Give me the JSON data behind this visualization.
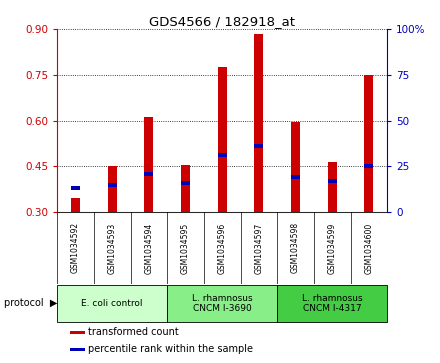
{
  "title": "GDS4566 / 182918_at",
  "samples": [
    "GSM1034592",
    "GSM1034593",
    "GSM1034594",
    "GSM1034595",
    "GSM1034596",
    "GSM1034597",
    "GSM1034598",
    "GSM1034599",
    "GSM1034600"
  ],
  "transformed_counts": [
    0.345,
    0.45,
    0.61,
    0.455,
    0.775,
    0.885,
    0.595,
    0.465,
    0.75
  ],
  "percentile_ranks": [
    13,
    15,
    21,
    16,
    31,
    36,
    19,
    17,
    25
  ],
  "ylim_left": [
    0.3,
    0.9
  ],
  "ylim_right": [
    0,
    100
  ],
  "yticks_left": [
    0.3,
    0.45,
    0.6,
    0.75,
    0.9
  ],
  "yticks_right": [
    0,
    25,
    50,
    75,
    100
  ],
  "bar_color": "#cc0000",
  "percentile_color": "#0000bb",
  "bar_width": 0.25,
  "groups": [
    {
      "label": "E. coli control",
      "indices": [
        0,
        1,
        2
      ],
      "color": "#ccffcc"
    },
    {
      "label": "L. rhamnosus\nCNCM I-3690",
      "indices": [
        3,
        4,
        5
      ],
      "color": "#88ee88"
    },
    {
      "label": "L. rhamnosus\nCNCM I-4317",
      "indices": [
        6,
        7,
        8
      ],
      "color": "#44cc44"
    }
  ],
  "protocol_label": "protocol",
  "legend_items": [
    {
      "label": "transformed count",
      "color": "#cc0000"
    },
    {
      "label": "percentile rank within the sample",
      "color": "#0000bb"
    }
  ],
  "left_tick_color": "#cc0000",
  "right_tick_color": "#0000bb",
  "background_color": "#ffffff",
  "sample_box_color": "#dddddd",
  "group_colors": [
    "#ccffcc",
    "#88ee88",
    "#44cc44"
  ]
}
